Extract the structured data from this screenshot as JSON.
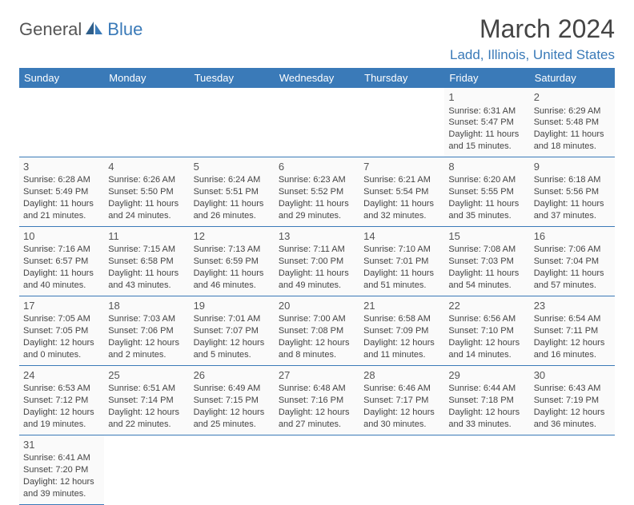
{
  "logo": {
    "general": "General",
    "blue": "Blue"
  },
  "title": "March 2024",
  "location": "Ladd, Illinois, United States",
  "colors": {
    "header_bg": "#3a7ab8",
    "header_text": "#ffffff",
    "accent": "#3a7ab8",
    "text": "#444444",
    "bg": "#ffffff",
    "cell_bg": "#fafafa"
  },
  "weekdays": [
    "Sunday",
    "Monday",
    "Tuesday",
    "Wednesday",
    "Thursday",
    "Friday",
    "Saturday"
  ],
  "weeks": [
    [
      null,
      null,
      null,
      null,
      null,
      {
        "n": "1",
        "sr": "Sunrise: 6:31 AM",
        "ss": "Sunset: 5:47 PM",
        "d1": "Daylight: 11 hours",
        "d2": "and 15 minutes."
      },
      {
        "n": "2",
        "sr": "Sunrise: 6:29 AM",
        "ss": "Sunset: 5:48 PM",
        "d1": "Daylight: 11 hours",
        "d2": "and 18 minutes."
      }
    ],
    [
      {
        "n": "3",
        "sr": "Sunrise: 6:28 AM",
        "ss": "Sunset: 5:49 PM",
        "d1": "Daylight: 11 hours",
        "d2": "and 21 minutes."
      },
      {
        "n": "4",
        "sr": "Sunrise: 6:26 AM",
        "ss": "Sunset: 5:50 PM",
        "d1": "Daylight: 11 hours",
        "d2": "and 24 minutes."
      },
      {
        "n": "5",
        "sr": "Sunrise: 6:24 AM",
        "ss": "Sunset: 5:51 PM",
        "d1": "Daylight: 11 hours",
        "d2": "and 26 minutes."
      },
      {
        "n": "6",
        "sr": "Sunrise: 6:23 AM",
        "ss": "Sunset: 5:52 PM",
        "d1": "Daylight: 11 hours",
        "d2": "and 29 minutes."
      },
      {
        "n": "7",
        "sr": "Sunrise: 6:21 AM",
        "ss": "Sunset: 5:54 PM",
        "d1": "Daylight: 11 hours",
        "d2": "and 32 minutes."
      },
      {
        "n": "8",
        "sr": "Sunrise: 6:20 AM",
        "ss": "Sunset: 5:55 PM",
        "d1": "Daylight: 11 hours",
        "d2": "and 35 minutes."
      },
      {
        "n": "9",
        "sr": "Sunrise: 6:18 AM",
        "ss": "Sunset: 5:56 PM",
        "d1": "Daylight: 11 hours",
        "d2": "and 37 minutes."
      }
    ],
    [
      {
        "n": "10",
        "sr": "Sunrise: 7:16 AM",
        "ss": "Sunset: 6:57 PM",
        "d1": "Daylight: 11 hours",
        "d2": "and 40 minutes."
      },
      {
        "n": "11",
        "sr": "Sunrise: 7:15 AM",
        "ss": "Sunset: 6:58 PM",
        "d1": "Daylight: 11 hours",
        "d2": "and 43 minutes."
      },
      {
        "n": "12",
        "sr": "Sunrise: 7:13 AM",
        "ss": "Sunset: 6:59 PM",
        "d1": "Daylight: 11 hours",
        "d2": "and 46 minutes."
      },
      {
        "n": "13",
        "sr": "Sunrise: 7:11 AM",
        "ss": "Sunset: 7:00 PM",
        "d1": "Daylight: 11 hours",
        "d2": "and 49 minutes."
      },
      {
        "n": "14",
        "sr": "Sunrise: 7:10 AM",
        "ss": "Sunset: 7:01 PM",
        "d1": "Daylight: 11 hours",
        "d2": "and 51 minutes."
      },
      {
        "n": "15",
        "sr": "Sunrise: 7:08 AM",
        "ss": "Sunset: 7:03 PM",
        "d1": "Daylight: 11 hours",
        "d2": "and 54 minutes."
      },
      {
        "n": "16",
        "sr": "Sunrise: 7:06 AM",
        "ss": "Sunset: 7:04 PM",
        "d1": "Daylight: 11 hours",
        "d2": "and 57 minutes."
      }
    ],
    [
      {
        "n": "17",
        "sr": "Sunrise: 7:05 AM",
        "ss": "Sunset: 7:05 PM",
        "d1": "Daylight: 12 hours",
        "d2": "and 0 minutes."
      },
      {
        "n": "18",
        "sr": "Sunrise: 7:03 AM",
        "ss": "Sunset: 7:06 PM",
        "d1": "Daylight: 12 hours",
        "d2": "and 2 minutes."
      },
      {
        "n": "19",
        "sr": "Sunrise: 7:01 AM",
        "ss": "Sunset: 7:07 PM",
        "d1": "Daylight: 12 hours",
        "d2": "and 5 minutes."
      },
      {
        "n": "20",
        "sr": "Sunrise: 7:00 AM",
        "ss": "Sunset: 7:08 PM",
        "d1": "Daylight: 12 hours",
        "d2": "and 8 minutes."
      },
      {
        "n": "21",
        "sr": "Sunrise: 6:58 AM",
        "ss": "Sunset: 7:09 PM",
        "d1": "Daylight: 12 hours",
        "d2": "and 11 minutes."
      },
      {
        "n": "22",
        "sr": "Sunrise: 6:56 AM",
        "ss": "Sunset: 7:10 PM",
        "d1": "Daylight: 12 hours",
        "d2": "and 14 minutes."
      },
      {
        "n": "23",
        "sr": "Sunrise: 6:54 AM",
        "ss": "Sunset: 7:11 PM",
        "d1": "Daylight: 12 hours",
        "d2": "and 16 minutes."
      }
    ],
    [
      {
        "n": "24",
        "sr": "Sunrise: 6:53 AM",
        "ss": "Sunset: 7:12 PM",
        "d1": "Daylight: 12 hours",
        "d2": "and 19 minutes."
      },
      {
        "n": "25",
        "sr": "Sunrise: 6:51 AM",
        "ss": "Sunset: 7:14 PM",
        "d1": "Daylight: 12 hours",
        "d2": "and 22 minutes."
      },
      {
        "n": "26",
        "sr": "Sunrise: 6:49 AM",
        "ss": "Sunset: 7:15 PM",
        "d1": "Daylight: 12 hours",
        "d2": "and 25 minutes."
      },
      {
        "n": "27",
        "sr": "Sunrise: 6:48 AM",
        "ss": "Sunset: 7:16 PM",
        "d1": "Daylight: 12 hours",
        "d2": "and 27 minutes."
      },
      {
        "n": "28",
        "sr": "Sunrise: 6:46 AM",
        "ss": "Sunset: 7:17 PM",
        "d1": "Daylight: 12 hours",
        "d2": "and 30 minutes."
      },
      {
        "n": "29",
        "sr": "Sunrise: 6:44 AM",
        "ss": "Sunset: 7:18 PM",
        "d1": "Daylight: 12 hours",
        "d2": "and 33 minutes."
      },
      {
        "n": "30",
        "sr": "Sunrise: 6:43 AM",
        "ss": "Sunset: 7:19 PM",
        "d1": "Daylight: 12 hours",
        "d2": "and 36 minutes."
      }
    ],
    [
      {
        "n": "31",
        "sr": "Sunrise: 6:41 AM",
        "ss": "Sunset: 7:20 PM",
        "d1": "Daylight: 12 hours",
        "d2": "and 39 minutes."
      },
      null,
      null,
      null,
      null,
      null,
      null
    ]
  ]
}
